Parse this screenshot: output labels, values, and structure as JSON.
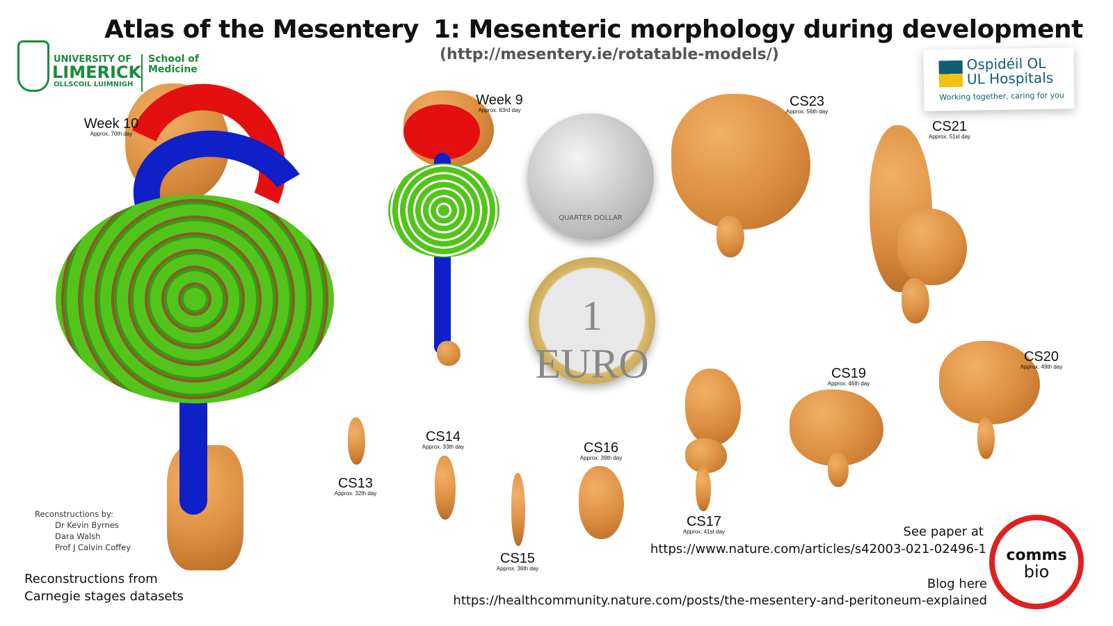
{
  "header": {
    "left_title": "Atlas of the Mesentery",
    "right_title": "1: Mesenteric morphology during development",
    "url": "(http://mesentery.ie/rotatable-models/)"
  },
  "logos": {
    "ul": {
      "line1": "UNIVERSITY OF",
      "line2": "LIMERICK",
      "line3": "OLLSCOIL LUIMNIGH",
      "school": "School of Medicine",
      "color": "#1a8a3c"
    },
    "hospital": {
      "line1": "Ospidéil OL",
      "line2": "UL Hospitals",
      "tagline": "Working together, caring for you",
      "color": "#0e5e6f"
    },
    "comms": {
      "line1": "comms",
      "line2": "bio",
      "ring": "#e02020"
    }
  },
  "specimens": [
    {
      "name": "Week 10",
      "day": "Approx. 70th day"
    },
    {
      "name": "Week 9",
      "day": "Approx. 63rd day"
    },
    {
      "name": "CS23",
      "day": "Approx. 56th day"
    },
    {
      "name": "CS21",
      "day": "Approx. 51st day"
    },
    {
      "name": "CS20",
      "day": "Approx. 49th day"
    },
    {
      "name": "CS19",
      "day": "Approx. 46th day"
    },
    {
      "name": "CS17",
      "day": "Approx. 41st day"
    },
    {
      "name": "CS16",
      "day": "Approx. 39th day"
    },
    {
      "name": "CS15",
      "day": "Approx. 36th day"
    },
    {
      "name": "CS14",
      "day": "Approx. 33th day"
    },
    {
      "name": "CS13",
      "day": "Approx. 32th day"
    }
  ],
  "coins": {
    "quarter": "QUARTER DOLLAR",
    "euro": "1 EURO"
  },
  "credits": {
    "heading": "Reconstructions by:",
    "names": [
      "Dr Kevin Byrnes",
      "Dara Walsh",
      "Prof J Calvin Coffey"
    ]
  },
  "footer": {
    "datasets": "Reconstructions from Carnegie stages datasets",
    "paper_label": "See paper at",
    "paper_url": "https://www.nature.com/articles/s42003-021-02496-1",
    "blog_label": "Blog here",
    "blog_url": "https://healthcommunity.nature.com/posts/the-mesentery-and-peritoneum-explained"
  }
}
